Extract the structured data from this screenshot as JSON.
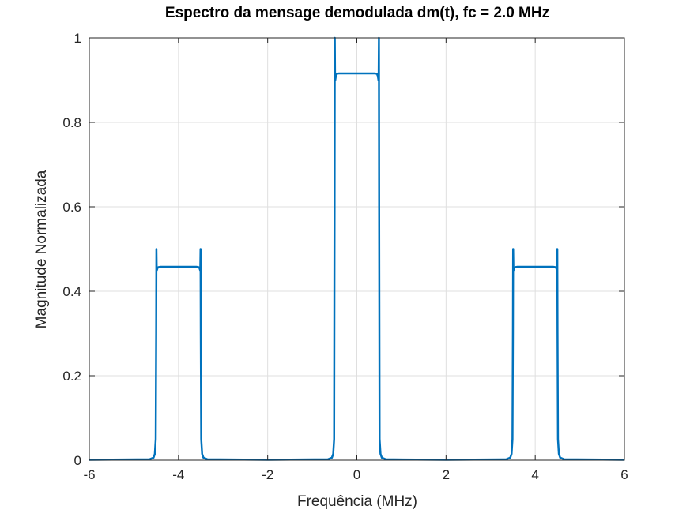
{
  "chart_data": {
    "type": "line",
    "title": "Espectro da mensage demodulada dm(t), fc = 2.0 MHz",
    "xlabel": "Frequência (MHz)",
    "ylabel": "Magnitude Normalizada",
    "xlim": [
      -6,
      6
    ],
    "ylim": [
      0,
      1
    ],
    "xticks": [
      -6,
      -4,
      -2,
      0,
      2,
      4,
      6
    ],
    "xtick_labels": [
      "-6",
      "-4",
      "-2",
      "0",
      "2",
      "4",
      "6"
    ],
    "yticks": [
      0,
      0.2,
      0.4,
      0.6,
      0.8,
      1
    ],
    "ytick_labels": [
      "0",
      "0.2",
      "0.4",
      "0.6",
      "0.8",
      "1"
    ],
    "grid": true,
    "line_color": "#0072BD",
    "series": [
      {
        "x": [
          -6,
          -4.65,
          -4.56,
          -4.53,
          -4.51,
          -4.5,
          -4.495,
          -4.49,
          -4.485,
          -4.47,
          -4.45,
          -4.4,
          -4.2,
          -4.0,
          -3.8,
          -3.6,
          -3.55,
          -3.53,
          -3.515,
          -3.51,
          -3.505,
          -3.5,
          -3.49,
          -3.47,
          -3.44,
          -3.35,
          -2,
          -0.65,
          -0.56,
          -0.53,
          -0.51,
          -0.5,
          -0.495,
          -0.49,
          -0.485,
          -0.47,
          -0.45,
          -0.4,
          -0.2,
          0,
          0.2,
          0.4,
          0.45,
          0.47,
          0.485,
          0.49,
          0.495,
          0.5,
          0.51,
          0.53,
          0.56,
          0.65,
          2,
          3.35,
          3.44,
          3.47,
          3.49,
          3.5,
          3.505,
          3.51,
          3.515,
          3.53,
          3.55,
          3.6,
          3.8,
          4.0,
          4.2,
          4.4,
          4.45,
          4.47,
          4.485,
          4.49,
          4.495,
          4.5,
          4.51,
          4.53,
          4.56,
          4.65,
          6
        ],
        "y": [
          0.001,
          0.002,
          0.006,
          0.015,
          0.05,
          0.3,
          0.5,
          0.46,
          0.45,
          0.455,
          0.457,
          0.458,
          0.458,
          0.458,
          0.458,
          0.458,
          0.457,
          0.455,
          0.45,
          0.46,
          0.5,
          0.3,
          0.05,
          0.015,
          0.006,
          0.002,
          0.001,
          0.002,
          0.006,
          0.015,
          0.05,
          0.6,
          1.0,
          0.92,
          0.9,
          0.91,
          0.915,
          0.916,
          0.916,
          0.916,
          0.916,
          0.916,
          0.915,
          0.91,
          0.9,
          0.92,
          1.0,
          0.6,
          0.05,
          0.015,
          0.006,
          0.002,
          0.001,
          0.002,
          0.006,
          0.015,
          0.05,
          0.3,
          0.5,
          0.46,
          0.45,
          0.455,
          0.457,
          0.458,
          0.458,
          0.458,
          0.458,
          0.458,
          0.457,
          0.455,
          0.45,
          0.46,
          0.5,
          0.3,
          0.05,
          0.015,
          0.006,
          0.002,
          0.001
        ]
      }
    ]
  }
}
